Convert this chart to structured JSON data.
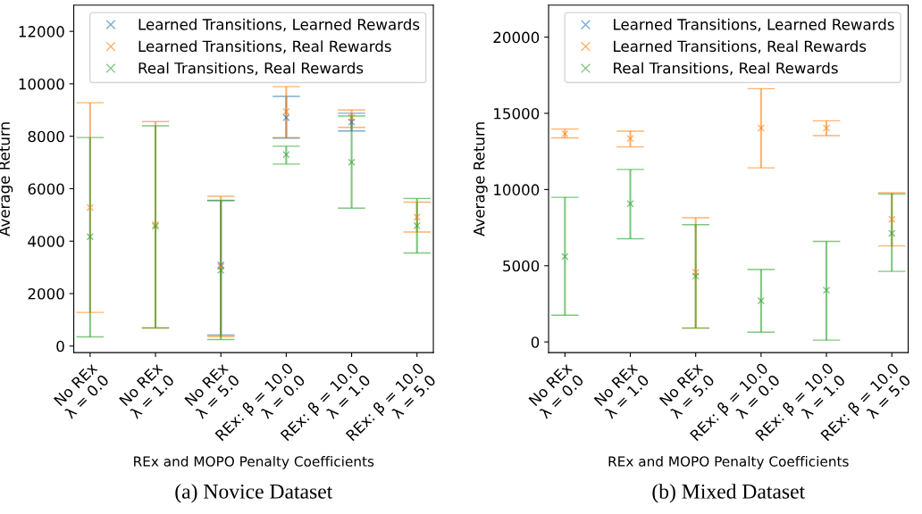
{
  "chart_data": [
    {
      "type": "scatter",
      "title": "(a) Novice Dataset",
      "xlabel": "REx and MOPO Penalty Coefficients",
      "ylabel": "Average Return",
      "categories": [
        "No REx\nλ = 0.0",
        "No REx\nλ = 1.0",
        "No REx\nλ = 5.0",
        "REx: β = 10.0\nλ = 0.0",
        "REx: β = 10.0\nλ = 1.0",
        "REx: β = 10.0\nλ = 5.0"
      ],
      "ylim": [
        -250,
        13000
      ],
      "yticks": [
        0,
        2000,
        4000,
        6000,
        8000,
        10000,
        12000
      ],
      "marker": "cross",
      "legend": "top right",
      "grid": false,
      "series": [
        {
          "name": "Learned Transitions, Learned Rewards",
          "color": "#1f77b4",
          "values": [
            null,
            null,
            3090,
            8710,
            8540,
            null
          ],
          "errors": [
            null,
            null,
            [
              420,
              5560
            ],
            [
              7930,
              9520
            ],
            [
              8200,
              8880
            ],
            null
          ]
        },
        {
          "name": "Learned Transitions, Real Rewards",
          "color": "#ff7f0e",
          "values": [
            5280,
            4630,
            3030,
            8940,
            8710,
            4920
          ],
          "errors": [
            [
              1280,
              9280
            ],
            [
              690,
              8560
            ],
            [
              360,
              5710
            ],
            [
              7950,
              9890
            ],
            [
              8340,
              9000
            ],
            [
              4350,
              5490
            ]
          ]
        },
        {
          "name": "Real Transitions, Real Rewards",
          "color": "#2ca02c",
          "values": [
            4170,
            4570,
            2890,
            7300,
            7010,
            4590
          ],
          "errors": [
            [
              350,
              7950
            ],
            [
              690,
              8400
            ],
            [
              250,
              5540
            ],
            [
              6940,
              7620
            ],
            [
              5260,
              8770
            ],
            [
              3550,
              5630
            ]
          ]
        }
      ]
    },
    {
      "type": "scatter",
      "title": "(b) Mixed Dataset",
      "xlabel": "REx and MOPO Penalty Coefficients",
      "ylabel": "Average Return",
      "categories": [
        "No REx\nλ = 0.0",
        "No REx\nλ = 1.0",
        "No REx\nλ = 5.0",
        "REx: β = 10.0\nλ = 0.0",
        "REx: β = 10.0\nλ = 1.0",
        "REx: β = 10.0\nλ = 5.0"
      ],
      "ylim": [
        -700,
        22100
      ],
      "yticks": [
        0,
        5000,
        10000,
        15000,
        20000
      ],
      "marker": "cross",
      "legend": "top right",
      "grid": false,
      "series": [
        {
          "name": "Learned Transitions, Learned Rewards",
          "color": "#1f77b4",
          "values": [
            null,
            null,
            null,
            null,
            null,
            null
          ],
          "errors": [
            null,
            null,
            null,
            null,
            null,
            null
          ]
        },
        {
          "name": "Learned Transitions, Real Rewards",
          "color": "#ff7f0e",
          "values": [
            13660,
            13350,
            4570,
            14030,
            14030,
            8050
          ],
          "errors": [
            [
              13390,
              13970
            ],
            [
              12800,
              13830
            ],
            [
              910,
              8150
            ],
            [
              11420,
              16620
            ],
            [
              13540,
              14510
            ],
            [
              6300,
              9790
            ]
          ]
        },
        {
          "name": "Real Transitions, Real Rewards",
          "color": "#2ca02c",
          "values": [
            5600,
            9070,
            4320,
            2700,
            3390,
            7120
          ],
          "errors": [
            [
              1750,
              9490
            ],
            [
              6770,
              11320
            ],
            [
              910,
              7700
            ],
            [
              640,
              4750
            ],
            [
              120,
              6600
            ],
            [
              4630,
              9710
            ]
          ]
        }
      ]
    }
  ]
}
